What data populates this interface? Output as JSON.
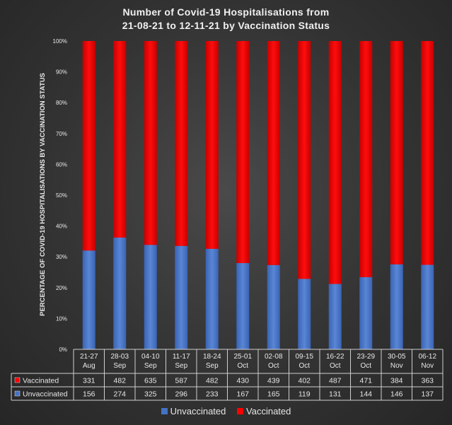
{
  "chart_data": {
    "type": "bar",
    "stacked": true,
    "normalized": true,
    "title": [
      "Number of Covid-19 Hospitalisations from",
      "21-08-21 to 12-11-21 by Vaccination Status"
    ],
    "ylabel": "PERCENTAGE OF COVID-19 HOSPITALISATIONS BY VACCINATION STATUS",
    "xlabel": "",
    "ylim": [
      0,
      100
    ],
    "yticks": [
      "0%",
      "10%",
      "20%",
      "30%",
      "40%",
      "50%",
      "60%",
      "70%",
      "80%",
      "90%",
      "100%"
    ],
    "categories": [
      [
        "21-27",
        "Aug"
      ],
      [
        "28-03",
        "Sep"
      ],
      [
        "04-10",
        "Sep"
      ],
      [
        "11-17",
        "Sep"
      ],
      [
        "18-24",
        "Sep"
      ],
      [
        "25-01",
        "Oct"
      ],
      [
        "02-08",
        "Oct"
      ],
      [
        "09-15",
        "Oct"
      ],
      [
        "16-22",
        "Oct"
      ],
      [
        "23-29",
        "Oct"
      ],
      [
        "30-05",
        "Nov"
      ],
      [
        "06-12",
        "Nov"
      ]
    ],
    "series": [
      {
        "name": "Vaccinated",
        "color": "#ff0000",
        "values": [
          331,
          482,
          635,
          587,
          482,
          430,
          439,
          402,
          487,
          471,
          384,
          363
        ]
      },
      {
        "name": "Unvaccinated",
        "color": "#4472c4",
        "values": [
          156,
          274,
          325,
          296,
          233,
          167,
          165,
          119,
          131,
          144,
          146,
          137
        ]
      }
    ],
    "legend": {
      "position": "bottom",
      "items": [
        "Unvaccinated",
        "Vaccinated"
      ]
    },
    "data_table": true,
    "grid": false
  }
}
